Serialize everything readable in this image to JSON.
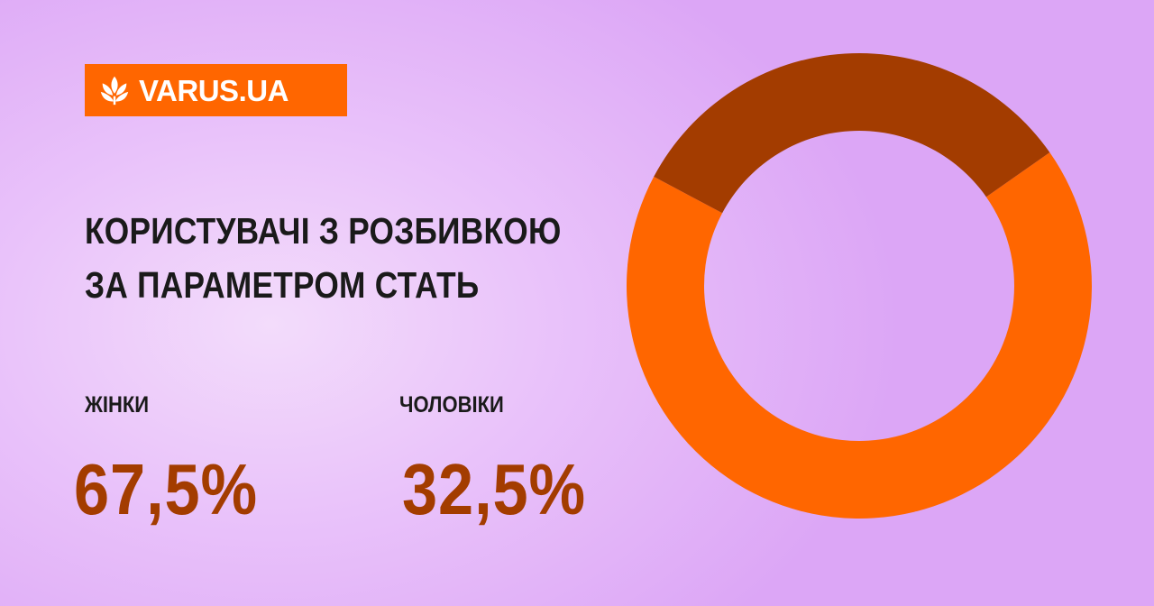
{
  "logo": {
    "text": "VARUS.UA",
    "icon": "wheat-flower-icon",
    "bg_color": "#ff6600"
  },
  "title_lines": [
    "КОРИСТУВАЧІ З РОЗБИВКОЮ",
    "ЗА ПАРАМЕТРОМ СТАТЬ"
  ],
  "stats": [
    {
      "label": "ЖІНКИ",
      "value": "67,5%"
    },
    {
      "label": "ЧОЛОВІКИ",
      "value": "32,5%"
    }
  ],
  "chart_data": {
    "type": "pie",
    "donut": true,
    "slices": [
      {
        "label": "ЖІНКИ",
        "value": 67.5,
        "color": "#ff6600"
      },
      {
        "label": "ЧОЛОВІКИ",
        "value": 32.5,
        "color": "#a33c00"
      }
    ],
    "title": "КОРИСТУВАЧІ З РОЗБИВКОЮ ЗА ПАРАМЕТРОМ СТАТЬ"
  }
}
